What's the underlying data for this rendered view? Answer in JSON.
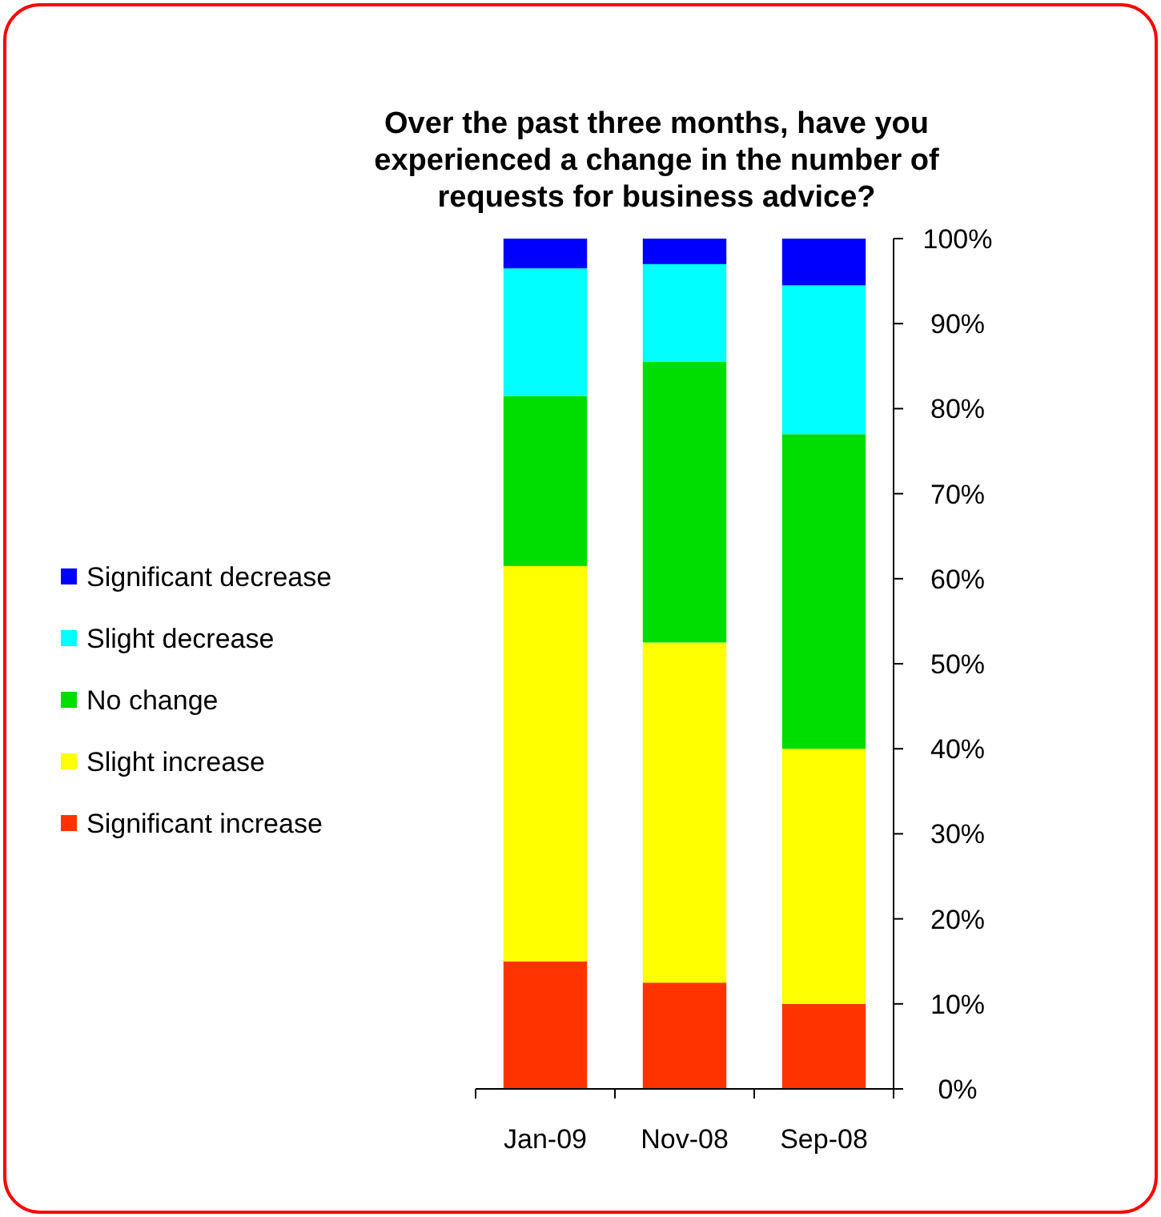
{
  "chart_data": {
    "type": "bar",
    "stacked": true,
    "title": "Over the past three months, have you experienced a change in the number of requests for business advice?",
    "categories": [
      "Jan-09",
      "Nov-08",
      "Sep-08"
    ],
    "series": [
      {
        "name": "Significant increase",
        "color": "#ff3300",
        "values": [
          15,
          12.5,
          10
        ]
      },
      {
        "name": "Slight increase",
        "color": "#ffff00",
        "values": [
          46.5,
          40,
          30
        ]
      },
      {
        "name": "No change",
        "color": "#00dd00",
        "values": [
          20,
          33,
          37
        ]
      },
      {
        "name": "Slight decrease",
        "color": "#00ffff",
        "values": [
          15,
          11.5,
          17.5
        ]
      },
      {
        "name": "Significant decrease",
        "color": "#0000ff",
        "values": [
          3.5,
          3,
          5.5
        ]
      }
    ],
    "ylim": [
      0,
      100
    ],
    "yticks": [
      {
        "value": 0,
        "label": "0%"
      },
      {
        "value": 10,
        "label": "10%"
      },
      {
        "value": 20,
        "label": "20%"
      },
      {
        "value": 30,
        "label": "30%"
      },
      {
        "value": 40,
        "label": "40%"
      },
      {
        "value": 50,
        "label": "50%"
      },
      {
        "value": 60,
        "label": "60%"
      },
      {
        "value": 70,
        "label": "70%"
      },
      {
        "value": 80,
        "label": "80%"
      },
      {
        "value": 90,
        "label": "90%"
      },
      {
        "value": 100,
        "label": "100%"
      }
    ],
    "grid": false,
    "legend": "left"
  }
}
